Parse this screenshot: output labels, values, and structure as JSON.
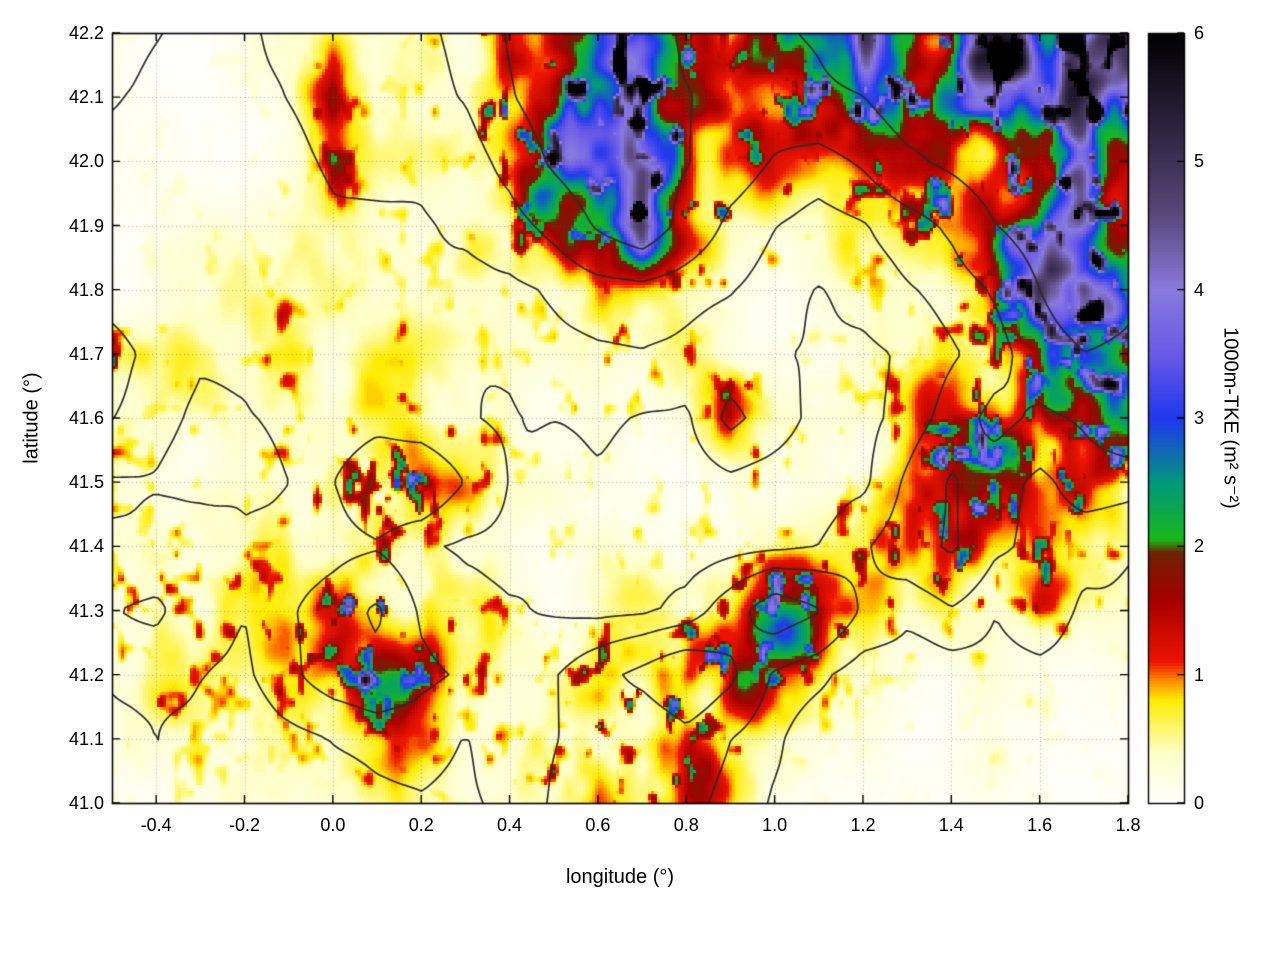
{
  "figure": {
    "background": "#ffffff"
  },
  "chart_data": {
    "type": "heatmap",
    "title": "",
    "xlabel": "longitude (°)",
    "ylabel": "latitude (°)",
    "colorbar_label": "1000m-TKE (m² s⁻²)",
    "x_range": [
      -0.5,
      1.8
    ],
    "y_range": [
      41.0,
      42.2
    ],
    "colorbar_range": [
      0,
      6
    ],
    "grid_on": true,
    "x_tick_values": [
      -0.4,
      -0.2,
      0.0,
      0.2,
      0.4,
      0.6,
      0.8,
      1.0,
      1.2,
      1.4,
      1.6,
      1.8
    ],
    "x_tick_labels": [
      "-0.4",
      "-0.2",
      "0.0",
      "0.2",
      "0.4",
      "0.6",
      "0.8",
      "1.0",
      "1.2",
      "1.4",
      "1.6",
      "1.8"
    ],
    "y_tick_values": [
      41.0,
      41.1,
      41.2,
      41.3,
      41.4,
      41.5,
      41.6,
      41.7,
      41.8,
      41.9,
      42.0,
      42.1,
      42.2
    ],
    "y_tick_labels": [
      "41.0",
      "41.1",
      "41.2",
      "41.3",
      "41.4",
      "41.5",
      "41.6",
      "41.7",
      "41.8",
      "41.9",
      "42.0",
      "42.1",
      "42.2"
    ],
    "colorbar_tick_values": [
      0,
      1,
      2,
      3,
      4,
      5,
      6
    ],
    "colorbar_tick_labels": [
      "0",
      "1",
      "2",
      "3",
      "4",
      "5",
      "6"
    ],
    "palette_stops": [
      [
        0.0,
        "#ffffff"
      ],
      [
        0.4,
        "#ffffc8"
      ],
      [
        0.8,
        "#ffec00"
      ],
      [
        0.95,
        "#ff9000"
      ],
      [
        1.1,
        "#ee1500"
      ],
      [
        1.6,
        "#a50000"
      ],
      [
        1.95,
        "#6e2200"
      ],
      [
        2.05,
        "#18b818"
      ],
      [
        2.5,
        "#00997d"
      ],
      [
        3.0,
        "#2038ee"
      ],
      [
        3.5,
        "#6a5ae8"
      ],
      [
        4.0,
        "#8a7ae0"
      ],
      [
        4.6,
        "#584878"
      ],
      [
        5.1,
        "#382c4e"
      ],
      [
        6.0,
        "#000000"
      ]
    ],
    "tke_grid": {
      "lon0": -0.5,
      "dlon": 0.1,
      "lat0": 42.2,
      "dlat": -0.1,
      "values": [
        [
          0.2,
          0.1,
          0.1,
          0.2,
          0.3,
          0.5,
          0.3,
          0.4,
          0.8,
          3.5,
          5.5,
          4.5,
          5.0,
          3.0,
          1.5,
          3.0,
          4.5,
          5.5,
          4.5,
          5.0,
          5.5,
          4.5,
          5.0,
          5.5
        ],
        [
          0.1,
          0.2,
          0.3,
          0.2,
          0.3,
          1.3,
          0.4,
          0.5,
          1.0,
          4.0,
          5.0,
          5.5,
          4.5,
          3.5,
          2.0,
          2.5,
          3.0,
          4.0,
          5.5,
          5.0,
          4.5,
          5.5,
          5.0,
          4.5
        ],
        [
          0.2,
          0.3,
          0.2,
          0.3,
          0.4,
          0.8,
          0.6,
          0.5,
          0.8,
          2.0,
          4.5,
          5.5,
          5.0,
          4.0,
          2.5,
          1.5,
          1.0,
          2.0,
          3.5,
          4.5,
          5.5,
          4.5,
          5.0,
          5.5
        ],
        [
          0.2,
          0.2,
          0.3,
          0.3,
          0.4,
          0.5,
          0.4,
          0.5,
          0.6,
          1.0,
          2.5,
          4.5,
          5.5,
          3.5,
          1.5,
          0.8,
          0.6,
          0.8,
          1.5,
          2.5,
          4.0,
          5.0,
          4.5,
          4.0
        ],
        [
          0.3,
          0.4,
          0.3,
          0.4,
          0.4,
          0.5,
          0.5,
          0.6,
          0.5,
          0.6,
          0.8,
          1.2,
          1.5,
          1.0,
          0.8,
          0.5,
          0.4,
          0.5,
          0.8,
          1.2,
          2.0,
          4.5,
          5.5,
          4.5
        ],
        [
          2.0,
          0.8,
          0.4,
          0.5,
          1.2,
          0.6,
          0.8,
          0.6,
          0.5,
          0.6,
          0.8,
          1.0,
          1.2,
          0.8,
          0.6,
          0.5,
          0.4,
          0.4,
          0.6,
          1.0,
          1.5,
          3.0,
          4.5,
          3.5
        ],
        [
          1.5,
          0.6,
          0.5,
          0.6,
          0.8,
          1.0,
          1.2,
          0.8,
          0.6,
          0.5,
          0.6,
          0.8,
          0.6,
          0.5,
          2.5,
          1.0,
          0.5,
          0.6,
          1.0,
          2.5,
          3.5,
          2.0,
          2.5,
          4.0
        ],
        [
          0.5,
          0.6,
          0.5,
          0.6,
          0.8,
          1.5,
          2.5,
          3.0,
          1.5,
          0.6,
          0.5,
          0.6,
          0.5,
          0.6,
          0.8,
          0.6,
          0.5,
          0.8,
          2.0,
          3.5,
          2.5,
          1.5,
          2.5,
          2.0
        ],
        [
          0.8,
          1.0,
          1.5,
          0.8,
          1.0,
          1.2,
          1.5,
          1.0,
          0.6,
          0.5,
          0.6,
          0.5,
          0.6,
          0.5,
          0.6,
          0.8,
          1.0,
          1.5,
          2.5,
          3.5,
          2.0,
          1.5,
          1.0,
          0.8
        ],
        [
          1.5,
          1.8,
          1.0,
          0.8,
          1.5,
          2.5,
          3.5,
          1.5,
          1.0,
          0.8,
          0.6,
          0.5,
          0.6,
          0.8,
          2.5,
          4.5,
          3.5,
          1.5,
          1.0,
          1.5,
          0.8,
          1.5,
          0.6,
          0.5
        ],
        [
          0.8,
          1.0,
          0.8,
          0.6,
          1.5,
          2.5,
          3.0,
          2.0,
          1.5,
          0.8,
          1.5,
          2.5,
          3.5,
          4.5,
          3.5,
          1.5,
          1.0,
          0.5,
          0.4,
          0.3,
          0.4,
          0.5,
          0.3,
          0.2
        ],
        [
          0.5,
          0.8,
          0.6,
          0.5,
          0.6,
          0.8,
          1.0,
          0.8,
          0.6,
          0.8,
          1.5,
          2.5,
          1.5,
          2.5,
          1.5,
          0.8,
          0.4,
          0.3,
          0.3,
          0.2,
          0.3,
          0.2,
          0.2,
          0.1
        ],
        [
          0.3,
          0.4,
          0.5,
          0.4,
          0.3,
          0.4,
          0.5,
          0.6,
          0.5,
          0.8,
          2.0,
          3.5,
          1.5,
          1.8,
          1.0,
          0.5,
          0.3,
          0.2,
          0.2,
          0.1,
          0.2,
          0.1,
          0.1,
          0.1
        ]
      ]
    },
    "terrain_contours": {
      "color": "#2b2b2b",
      "levels": [
        450,
        560,
        720,
        950
      ],
      "elevation_grid": {
        "lon0": -0.5,
        "dlon": 0.1,
        "lat0": 42.2,
        "dlat": -0.1,
        "values": [
          [
            620,
            560,
            510,
            530,
            570,
            610,
            630,
            660,
            760,
            960,
            1120,
            1020,
            1070,
            910,
            810,
            910,
            1010,
            1160,
            1060,
            1110,
            1210,
            1110,
            1160,
            1210
          ],
          [
            560,
            510,
            490,
            510,
            550,
            590,
            610,
            630,
            710,
            910,
            1060,
            1110,
            1010,
            960,
            860,
            860,
            910,
            960,
            1110,
            1060,
            1010,
            1160,
            1110,
            1060
          ],
          [
            510,
            490,
            470,
            490,
            510,
            560,
            590,
            570,
            610,
            760,
            960,
            1110,
            1060,
            960,
            810,
            710,
            660,
            760,
            910,
            1010,
            1110,
            1060,
            1110,
            1160
          ],
          [
            490,
            470,
            455,
            465,
            485,
            525,
            505,
            525,
            545,
            605,
            755,
            955,
            1105,
            855,
            655,
            555,
            505,
            555,
            655,
            755,
            955,
            1055,
            1005,
            955
          ],
          [
            475,
            455,
            445,
            455,
            465,
            485,
            495,
            505,
            485,
            505,
            555,
            625,
            655,
            605,
            555,
            485,
            455,
            485,
            555,
            625,
            755,
            955,
            1105,
            1005
          ],
          [
            605,
            505,
            435,
            445,
            525,
            465,
            485,
            465,
            445,
            465,
            505,
            545,
            565,
            525,
            485,
            455,
            435,
            445,
            485,
            565,
            655,
            855,
            955,
            905
          ],
          [
            555,
            485,
            425,
            445,
            465,
            505,
            525,
            485,
            455,
            435,
            455,
            485,
            465,
            445,
            605,
            505,
            425,
            445,
            505,
            655,
            805,
            705,
            755,
            905
          ],
          [
            435,
            445,
            415,
            435,
            455,
            555,
            655,
            705,
            555,
            435,
            415,
            435,
            415,
            435,
            455,
            435,
            415,
            445,
            605,
            755,
            655,
            555,
            655,
            605
          ],
          [
            455,
            475,
            555,
            465,
            485,
            505,
            555,
            485,
            435,
            415,
            435,
            415,
            435,
            415,
            435,
            455,
            475,
            555,
            655,
            755,
            605,
            555,
            505,
            465
          ],
          [
            555,
            585,
            485,
            465,
            555,
            655,
            755,
            555,
            485,
            455,
            435,
            415,
            435,
            485,
            655,
            855,
            755,
            555,
            485,
            555,
            465,
            555,
            445,
            425
          ],
          [
            485,
            505,
            475,
            455,
            555,
            655,
            705,
            605,
            555,
            475,
            555,
            655,
            755,
            855,
            755,
            555,
            505,
            435,
            415,
            405,
            415,
            425,
            405,
            395
          ],
          [
            445,
            475,
            455,
            435,
            455,
            485,
            505,
            485,
            455,
            485,
            555,
            655,
            555,
            655,
            555,
            485,
            425,
            405,
            405,
            395,
            405,
            395,
            395,
            385
          ],
          [
            425,
            435,
            445,
            435,
            425,
            435,
            445,
            455,
            445,
            475,
            585,
            705,
            555,
            585,
            505,
            435,
            415,
            405,
            398,
            392,
            398,
            392,
            388,
            382
          ]
        ]
      }
    }
  }
}
